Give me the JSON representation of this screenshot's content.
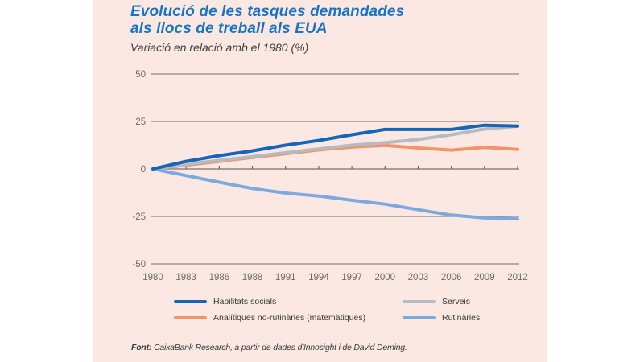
{
  "colors": {
    "panel_background": "#fce8e3",
    "title": "#1a74c4",
    "gridline": "#8f8582"
  },
  "chart_data": {
    "type": "line",
    "title": "Evolució de les tasques demandades als llocs de treball als EUA",
    "title_lines": [
      "Evolució de les tasques demandades",
      "als llocs de treball als EUA"
    ],
    "subtitle": "Variació en relació amb el 1980 (%)",
    "xlabel": "",
    "ylabel": "",
    "x": [
      "1980",
      "1983",
      "1986",
      "1988",
      "1991",
      "1994",
      "1997",
      "2000",
      "2003",
      "2006",
      "2009",
      "2012"
    ],
    "ylim": [
      -50,
      50
    ],
    "yticks": [
      50,
      25,
      0,
      -25,
      -50
    ],
    "grid": true,
    "legend_position": "bottom",
    "series": [
      {
        "name": "Habilitats socials",
        "color": "#1565b8",
        "values": [
          0,
          4,
          7,
          9.5,
          12.5,
          15,
          18,
          20.8,
          20.8,
          20.8,
          23,
          22.6
        ]
      },
      {
        "name": "Serveis",
        "color": "#b4bcc2",
        "values": [
          0,
          2.5,
          4.5,
          6.5,
          8.5,
          10.5,
          12.5,
          13.8,
          15.5,
          18,
          21,
          22.5
        ]
      },
      {
        "name": "Analítiques no-rutinàries (matemàtiques)",
        "color": "#f39468",
        "values": [
          0,
          2,
          4,
          6,
          8,
          10,
          11.5,
          12.4,
          11,
          9.9,
          11.3,
          10.3
        ]
      },
      {
        "name": "Rutinàries",
        "color": "#7ba9e0",
        "values": [
          0,
          -3.5,
          -7,
          -10.3,
          -12.7,
          -14.3,
          -16.5,
          -18.5,
          -21.5,
          -24.3,
          -25.8,
          -26.3
        ]
      }
    ],
    "legend": [
      {
        "label": "Habilitats socials",
        "color": "#1565b8"
      },
      {
        "label": "Serveis",
        "color": "#b4bcc2"
      },
      {
        "label": "Analítiques no-rutinàries (matemàtiques)",
        "color": "#f39468"
      },
      {
        "label": "Rutinàries",
        "color": "#7ba9e0"
      }
    ]
  },
  "source": {
    "prefix": "Font:",
    "text": " CaixaBank Research, a partir de dades d'Innosight i de David Deming."
  }
}
